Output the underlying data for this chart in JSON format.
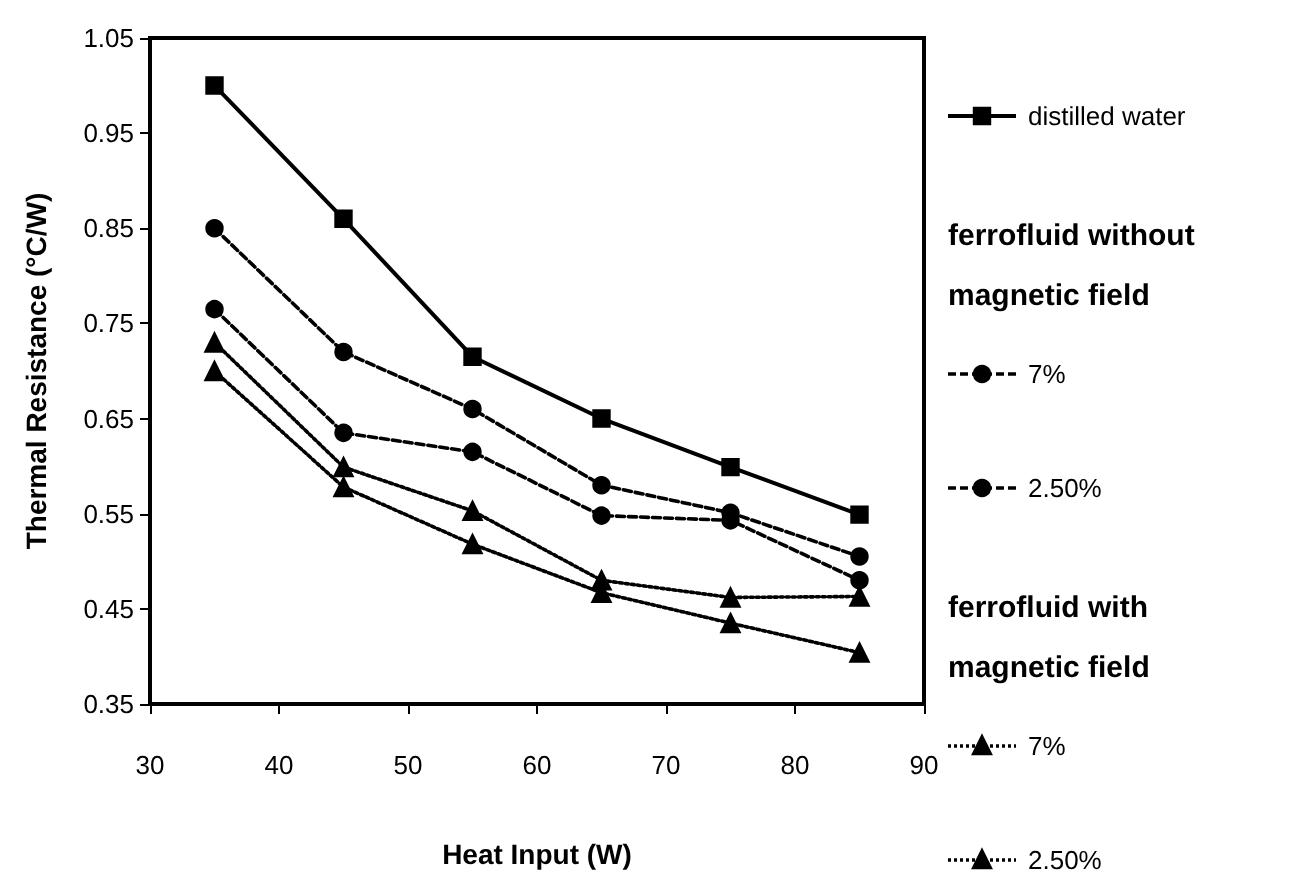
{
  "chart_data": {
    "type": "line",
    "xlabel": "Heat Input (W)",
    "ylabel": "Thermal Resistance (°C/W)",
    "x": [
      35,
      45,
      55,
      65,
      75,
      85
    ],
    "series": [
      {
        "name": "distilled water",
        "color": "#000000",
        "marker": "square",
        "line_style": "solid",
        "values": [
          1.0,
          0.86,
          0.715,
          0.65,
          0.599,
          0.549
        ]
      },
      {
        "name": "7%",
        "color": "#000000",
        "marker": "circle",
        "line_style": "dashed",
        "values": [
          0.85,
          0.72,
          0.66,
          0.58,
          0.551,
          0.505
        ]
      },
      {
        "name": "2.50%",
        "color": "#000000",
        "marker": "circle",
        "line_style": "dashed",
        "values": [
          0.765,
          0.635,
          0.615,
          0.548,
          0.543,
          0.48
        ]
      },
      {
        "name": "7%",
        "color": "#000000",
        "marker": "triangle",
        "line_style": "dotted",
        "values": [
          0.7,
          0.578,
          0.518,
          0.467,
          0.435,
          0.404
        ]
      },
      {
        "name": "2.50%",
        "color": "#000000",
        "marker": "triangle",
        "line_style": "dotted",
        "values": [
          0.73,
          0.599,
          0.553,
          0.48,
          0.462,
          0.463
        ]
      }
    ],
    "annotations": [
      "ferrofluid without magnetic field",
      "ferrofluid with magnetic field"
    ],
    "xlim": [
      30,
      90
    ],
    "xticks": [
      30,
      40,
      50,
      60,
      70,
      80,
      90
    ],
    "ylim": [
      0.35,
      1.05
    ],
    "yticks": [
      0.35,
      0.45,
      0.55,
      0.65,
      0.75,
      0.85,
      0.95,
      1.05
    ],
    "grid": false,
    "legend": "right"
  }
}
